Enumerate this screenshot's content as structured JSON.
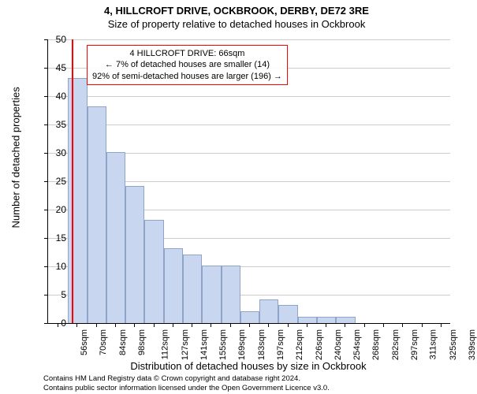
{
  "title1": "4, HILLCROFT DRIVE, OCKBROOK, DERBY, DE72 3RE",
  "title2": "Size of property relative to detached houses in Ockbrook",
  "ylabel": "Number of detached properties",
  "xlabel": "Distribution of detached houses by size in Ockbrook",
  "chart": {
    "type": "bar",
    "ylim": [
      0,
      50
    ],
    "ytick_step": 5,
    "categories": [
      "56sqm",
      "70sqm",
      "84sqm",
      "98sqm",
      "112sqm",
      "127sqm",
      "141sqm",
      "155sqm",
      "169sqm",
      "183sqm",
      "197sqm",
      "212sqm",
      "226sqm",
      "240sqm",
      "254sqm",
      "268sqm",
      "282sqm",
      "297sqm",
      "311sqm",
      "325sqm",
      "339sqm"
    ],
    "values": [
      0,
      43,
      38,
      30,
      24,
      18,
      13,
      12,
      10,
      10,
      2,
      4,
      3,
      1,
      1,
      1,
      0,
      0,
      0,
      0,
      0
    ],
    "bar_fill": "#c9d6ef",
    "bar_stroke": "#8fa4c9",
    "bar_width": 0.92,
    "background_color": "#ffffff",
    "grid_color": "#cccccc",
    "axis_color": "#000000",
    "marker_line": {
      "position_index": 0.75,
      "color": "#ff0000"
    }
  },
  "annotation": {
    "line1": "4 HILLCROFT DRIVE: 66sqm",
    "line2": "← 7% of detached houses are smaller (14)",
    "line3": "92% of semi-detached houses are larger (196) →",
    "border_color": "#ff0000"
  },
  "attribution": {
    "line1": "Contains HM Land Registry data © Crown copyright and database right 2024.",
    "line2": "Contains public sector information licensed under the Open Government Licence v3.0."
  }
}
